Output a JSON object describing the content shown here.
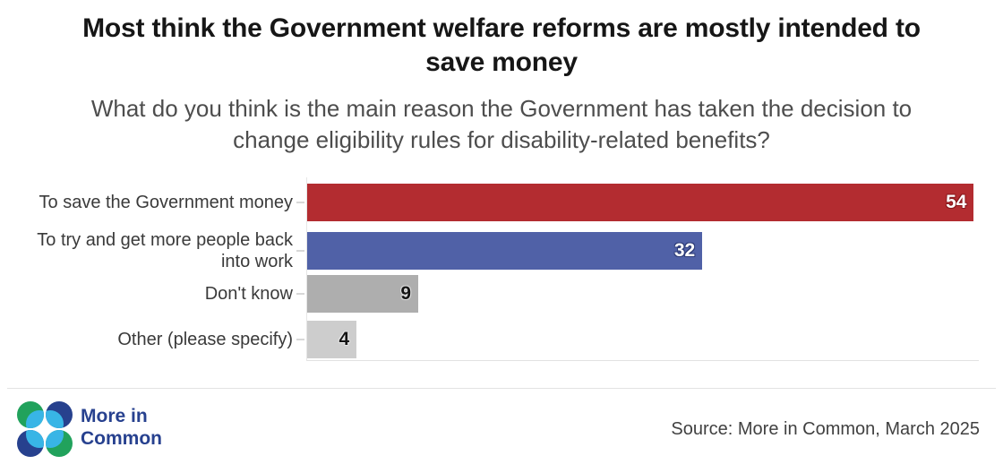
{
  "header": {
    "title_lines": [
      "Most think the Government welfare reforms are mostly intended to",
      "save money"
    ],
    "subtitle_lines": [
      "What do you think is the main reason the Government has taken the decision to",
      "change eligibility rules for disability-related benefits?"
    ]
  },
  "chart_data": {
    "type": "bar",
    "orientation": "horizontal",
    "title": "Most think the Government welfare reforms are mostly intended to save money",
    "subtitle": "What do you think is the main reason the Government has taken the decision to change eligibility rules for disability-related benefits?",
    "categories": [
      "To save the Government money",
      "To try and get more people back\ninto work",
      "Don't know",
      "Other (please specify)"
    ],
    "values": [
      54,
      32,
      9,
      4
    ],
    "bar_colors": [
      "#b32c30",
      "#5061a7",
      "#aeaeae",
      "#cdcdcd"
    ],
    "value_label_colors": [
      "#ffffff",
      "#ffffff",
      "#141414",
      "#141414"
    ],
    "value_halo_colors": [
      "#8a181c",
      "#2e3c78",
      "rgba(255,255,255,0.45)",
      "rgba(255,255,255,0.45)"
    ],
    "xlim": [
      0,
      54.4
    ],
    "grid": false,
    "legend": false,
    "value_label_position": "inside-end"
  },
  "footer": {
    "logo_text_lines": [
      "More in",
      "Common"
    ],
    "logo_colors": {
      "green": "#21a25c",
      "navy": "#27418e",
      "cyan": "#38b5e6",
      "text": "#27418f"
    },
    "source": "Source: More in Common, March 2025"
  }
}
